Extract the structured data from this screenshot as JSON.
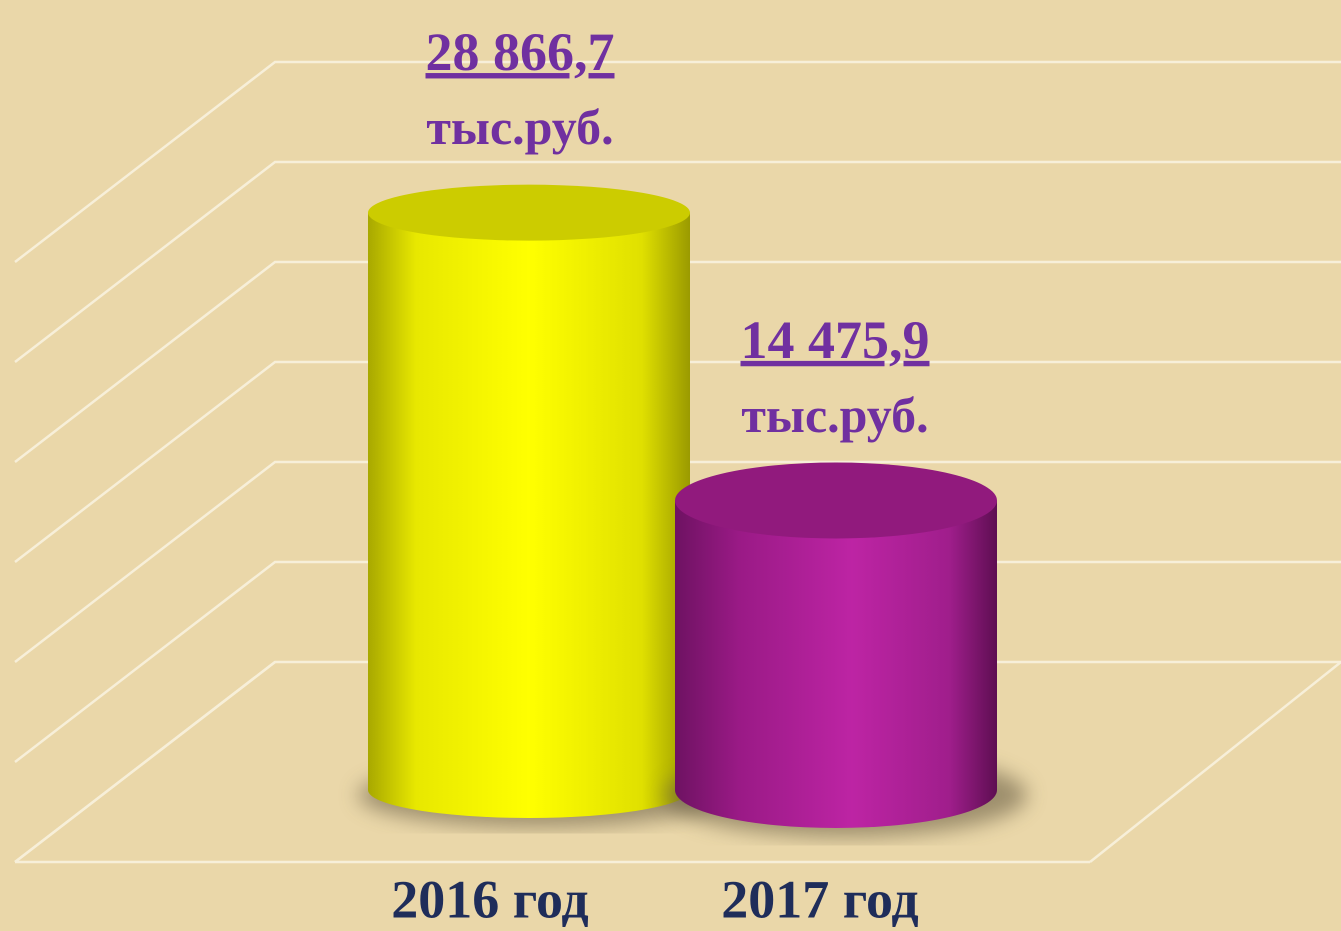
{
  "chart_data": {
    "type": "bar3d",
    "categories": [
      "2016 год",
      "2017 год"
    ],
    "values": [
      28866.7,
      14475.9
    ],
    "value_labels": [
      "28 866,7",
      "14 475,9"
    ],
    "unit": "тыс.руб.",
    "colors": [
      "#ffff00",
      "#b5209c"
    ],
    "ylim": [
      0,
      30000
    ],
    "yticks": [
      0,
      5000,
      10000,
      15000,
      20000,
      25000,
      30000
    ],
    "grid": true
  }
}
